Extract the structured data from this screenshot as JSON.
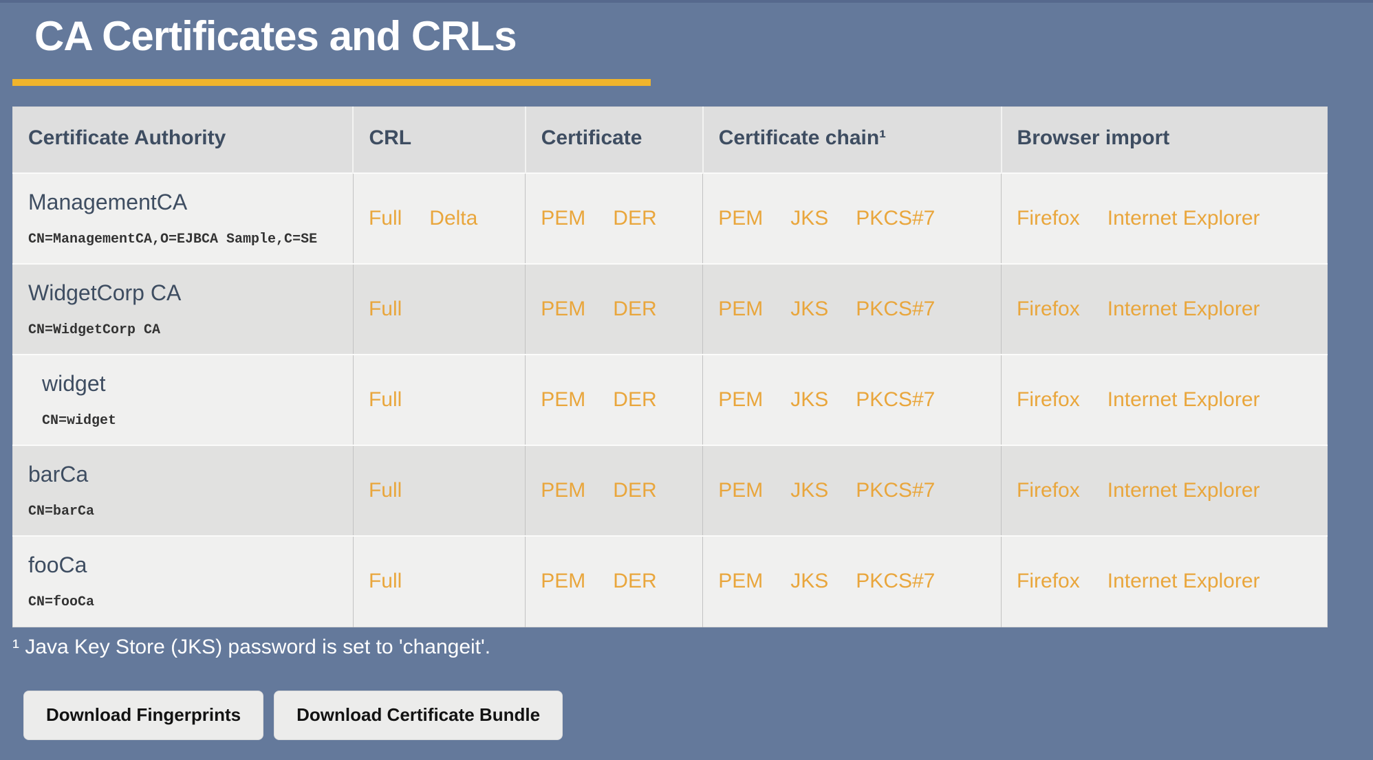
{
  "page": {
    "title": "CA Certificates and CRLs",
    "footnote": "¹ Java Key Store (JKS) password is set to 'changeit'.",
    "colors": {
      "background": "#64799B",
      "accent_rule": "#F0B42C",
      "link": "#E9A63C",
      "header_text": "#3E4D61",
      "row_light": "#F0F0EF",
      "row_dark": "#E1E1E0"
    }
  },
  "table": {
    "headers": [
      "Certificate Authority",
      "CRL",
      "Certificate",
      "Certificate chain¹",
      "Browser import"
    ],
    "rows": [
      {
        "name": "ManagementCA",
        "dn": "CN=ManagementCA,O=EJBCA Sample,C=SE",
        "indent": false,
        "crl": [
          "Full",
          "Delta"
        ],
        "certificate": [
          "PEM",
          "DER"
        ],
        "chain": [
          "PEM",
          "JKS",
          "PKCS#7"
        ],
        "browser_import": [
          "Firefox",
          "Internet Explorer"
        ]
      },
      {
        "name": "WidgetCorp CA",
        "dn": "CN=WidgetCorp CA",
        "indent": false,
        "crl": [
          "Full"
        ],
        "certificate": [
          "PEM",
          "DER"
        ],
        "chain": [
          "PEM",
          "JKS",
          "PKCS#7"
        ],
        "browser_import": [
          "Firefox",
          "Internet Explorer"
        ]
      },
      {
        "name": "widget",
        "dn": "CN=widget",
        "indent": true,
        "crl": [
          "Full"
        ],
        "certificate": [
          "PEM",
          "DER"
        ],
        "chain": [
          "PEM",
          "JKS",
          "PKCS#7"
        ],
        "browser_import": [
          "Firefox",
          "Internet Explorer"
        ]
      },
      {
        "name": "barCa",
        "dn": "CN=barCa",
        "indent": false,
        "crl": [
          "Full"
        ],
        "certificate": [
          "PEM",
          "DER"
        ],
        "chain": [
          "PEM",
          "JKS",
          "PKCS#7"
        ],
        "browser_import": [
          "Firefox",
          "Internet Explorer"
        ]
      },
      {
        "name": "fooCa",
        "dn": "CN=fooCa",
        "indent": false,
        "crl": [
          "Full"
        ],
        "certificate": [
          "PEM",
          "DER"
        ],
        "chain": [
          "PEM",
          "JKS",
          "PKCS#7"
        ],
        "browser_import": [
          "Firefox",
          "Internet Explorer"
        ]
      }
    ]
  },
  "buttons": {
    "fingerprints": "Download Fingerprints",
    "bundle": "Download Certificate Bundle"
  }
}
